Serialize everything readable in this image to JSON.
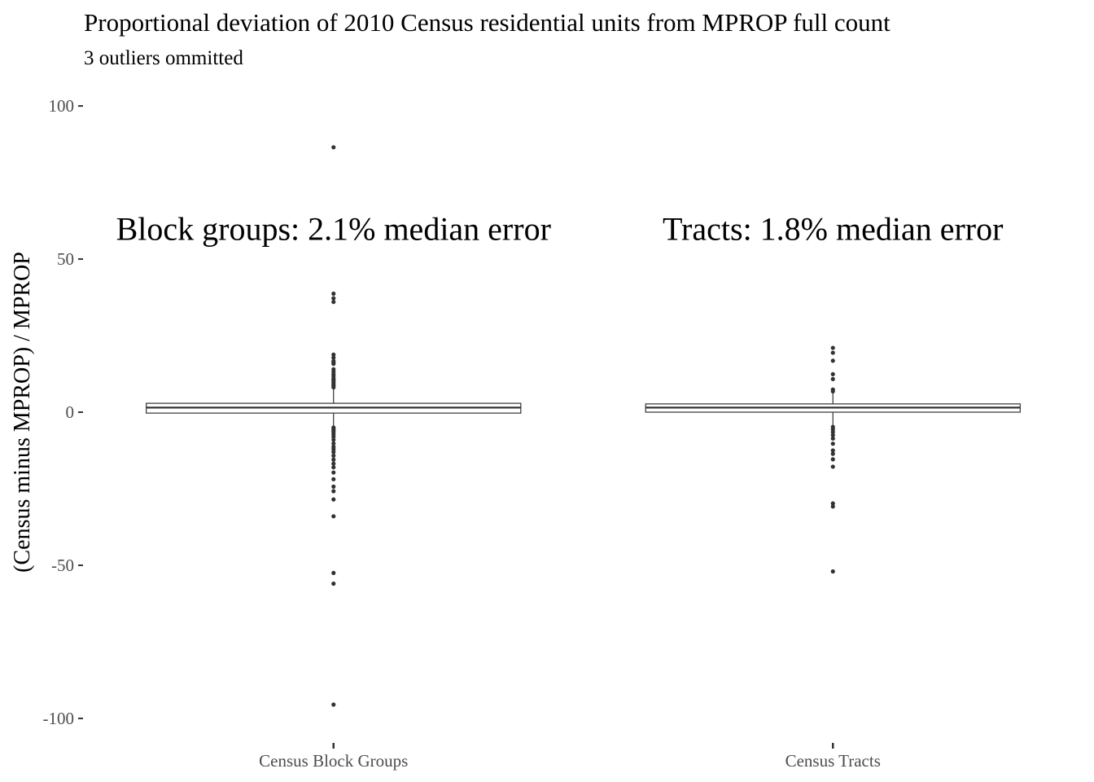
{
  "chart_data": {
    "type": "box",
    "title": "Proportional deviation of 2010 Census residential units from MPROP full count",
    "subtitle": "3 outliers ommitted",
    "xlabel": "",
    "ylabel": "(Census minus MPROP) / MPROP",
    "ylim": [
      -108,
      108
    ],
    "yticks": [
      100,
      50,
      0,
      -50,
      -100
    ],
    "ytick_labels": [
      "100",
      "50",
      "0",
      "-50",
      "-100"
    ],
    "categories": [
      "Census Block Groups",
      "Census Tracts"
    ],
    "grid": false,
    "annotations": [
      {
        "text": "Block groups: 2.1% median error",
        "category": "Census Block Groups",
        "y": 60
      },
      {
        "text": "Tracts: 1.8% median error",
        "category": "Census Tracts",
        "y": 60
      }
    ],
    "series": [
      {
        "category": "Census Block Groups",
        "min": -4.5,
        "q1": -0.3,
        "median": 1.5,
        "q3": 2.9,
        "max": 7.5,
        "outliers": [
          86.5,
          38.7,
          37.2,
          36.0,
          18.8,
          17.8,
          16.7,
          16.2,
          15.8,
          14.0,
          13.2,
          12.4,
          11.8,
          11.0,
          10.6,
          10.2,
          9.6,
          9.1,
          8.6,
          8.1,
          -5.0,
          -5.5,
          -6.0,
          -6.5,
          -7.2,
          -8.0,
          -9.0,
          -10.2,
          -11.3,
          -12.1,
          -13.0,
          -14.2,
          -15.5,
          -16.8,
          -18.0,
          -19.7,
          -21.9,
          -24.3,
          -25.8,
          -28.5,
          -34.0,
          -52.5,
          -56.0,
          -95.5
        ]
      },
      {
        "category": "Census Tracts",
        "min": -4.5,
        "q1": 0.0,
        "median": 1.5,
        "q3": 2.7,
        "max": 6.4,
        "outliers": [
          21.0,
          19.4,
          16.8,
          12.4,
          10.8,
          7.4,
          6.8,
          -4.8,
          -5.6,
          -6.5,
          -7.5,
          -8.6,
          -10.3,
          -12.5,
          -13.6,
          -15.4,
          -17.8,
          -29.8,
          -30.8,
          -52.0
        ]
      }
    ]
  }
}
